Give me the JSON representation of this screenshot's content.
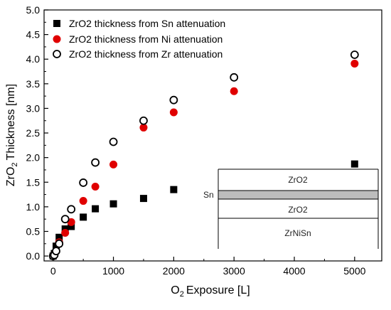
{
  "chart_data": {
    "type": "scatter",
    "xlabel": "Exposure [L]",
    "xlabel_sub_prefix": "O",
    "xlabel_sub": "2",
    "ylabel": "Thickness [nm]",
    "ylabel_sub_prefix": "ZrO",
    "ylabel_sub": "2",
    "xlim": [
      -150,
      5450
    ],
    "ylim": [
      -0.1,
      5.0
    ],
    "x_ticks": [
      0,
      1000,
      2000,
      3000,
      4000,
      5000
    ],
    "y_ticks": [
      0.0,
      0.5,
      1.0,
      1.5,
      2.0,
      2.5,
      3.0,
      3.5,
      4.0,
      4.5,
      5.0
    ],
    "x_tick_labels": [
      "0",
      "1000",
      "2000",
      "3000",
      "4000",
      "5000"
    ],
    "y_tick_labels": [
      "0.0",
      "0.5",
      "1.0",
      "1.5",
      "2.0",
      "2.5",
      "3.0",
      "3.5",
      "4.0",
      "4.5",
      "5.0"
    ],
    "legend_position": "top-left",
    "series": [
      {
        "name": "ZrO2 thickness from Sn attenuation",
        "marker": "filled-square",
        "color": "#000000",
        "points": [
          [
            0,
            0.0
          ],
          [
            20,
            0.05
          ],
          [
            50,
            0.2
          ],
          [
            100,
            0.38
          ],
          [
            200,
            0.55
          ],
          [
            300,
            0.6
          ],
          [
            500,
            0.79
          ],
          [
            700,
            0.96
          ],
          [
            1000,
            1.06
          ],
          [
            1500,
            1.17
          ],
          [
            2000,
            1.35
          ],
          [
            5000,
            1.87
          ]
        ]
      },
      {
        "name": "ZrO2 thickness from Ni attenuation",
        "marker": "filled-circle",
        "color": "#e00000",
        "points": [
          [
            0,
            0.0
          ],
          [
            20,
            0.03
          ],
          [
            50,
            0.1
          ],
          [
            100,
            0.28
          ],
          [
            200,
            0.47
          ],
          [
            300,
            0.69
          ],
          [
            500,
            1.12
          ],
          [
            700,
            1.41
          ],
          [
            1000,
            1.86
          ],
          [
            1500,
            2.61
          ],
          [
            2000,
            2.92
          ],
          [
            3000,
            3.35
          ],
          [
            5000,
            3.91
          ]
        ]
      },
      {
        "name": "ZrO2 thickness from Zr attenuation",
        "marker": "open-circle",
        "color": "#000000",
        "points": [
          [
            0,
            0.0
          ],
          [
            20,
            0.02
          ],
          [
            50,
            0.1
          ],
          [
            100,
            0.25
          ],
          [
            200,
            0.75
          ],
          [
            300,
            0.95
          ],
          [
            500,
            1.49
          ],
          [
            700,
            1.9
          ],
          [
            1000,
            2.32
          ],
          [
            1500,
            2.75
          ],
          [
            2000,
            3.17
          ],
          [
            3000,
            3.63
          ],
          [
            5000,
            4.09
          ]
        ]
      }
    ],
    "inset": {
      "layers": [
        "ZrO2",
        "Sn",
        "ZrO2",
        "ZrNiSn"
      ],
      "top_layer": "ZrO2",
      "sn_label": "Sn",
      "middle_layer": "ZrO2",
      "bottom_layer": "ZrNiSn"
    }
  }
}
